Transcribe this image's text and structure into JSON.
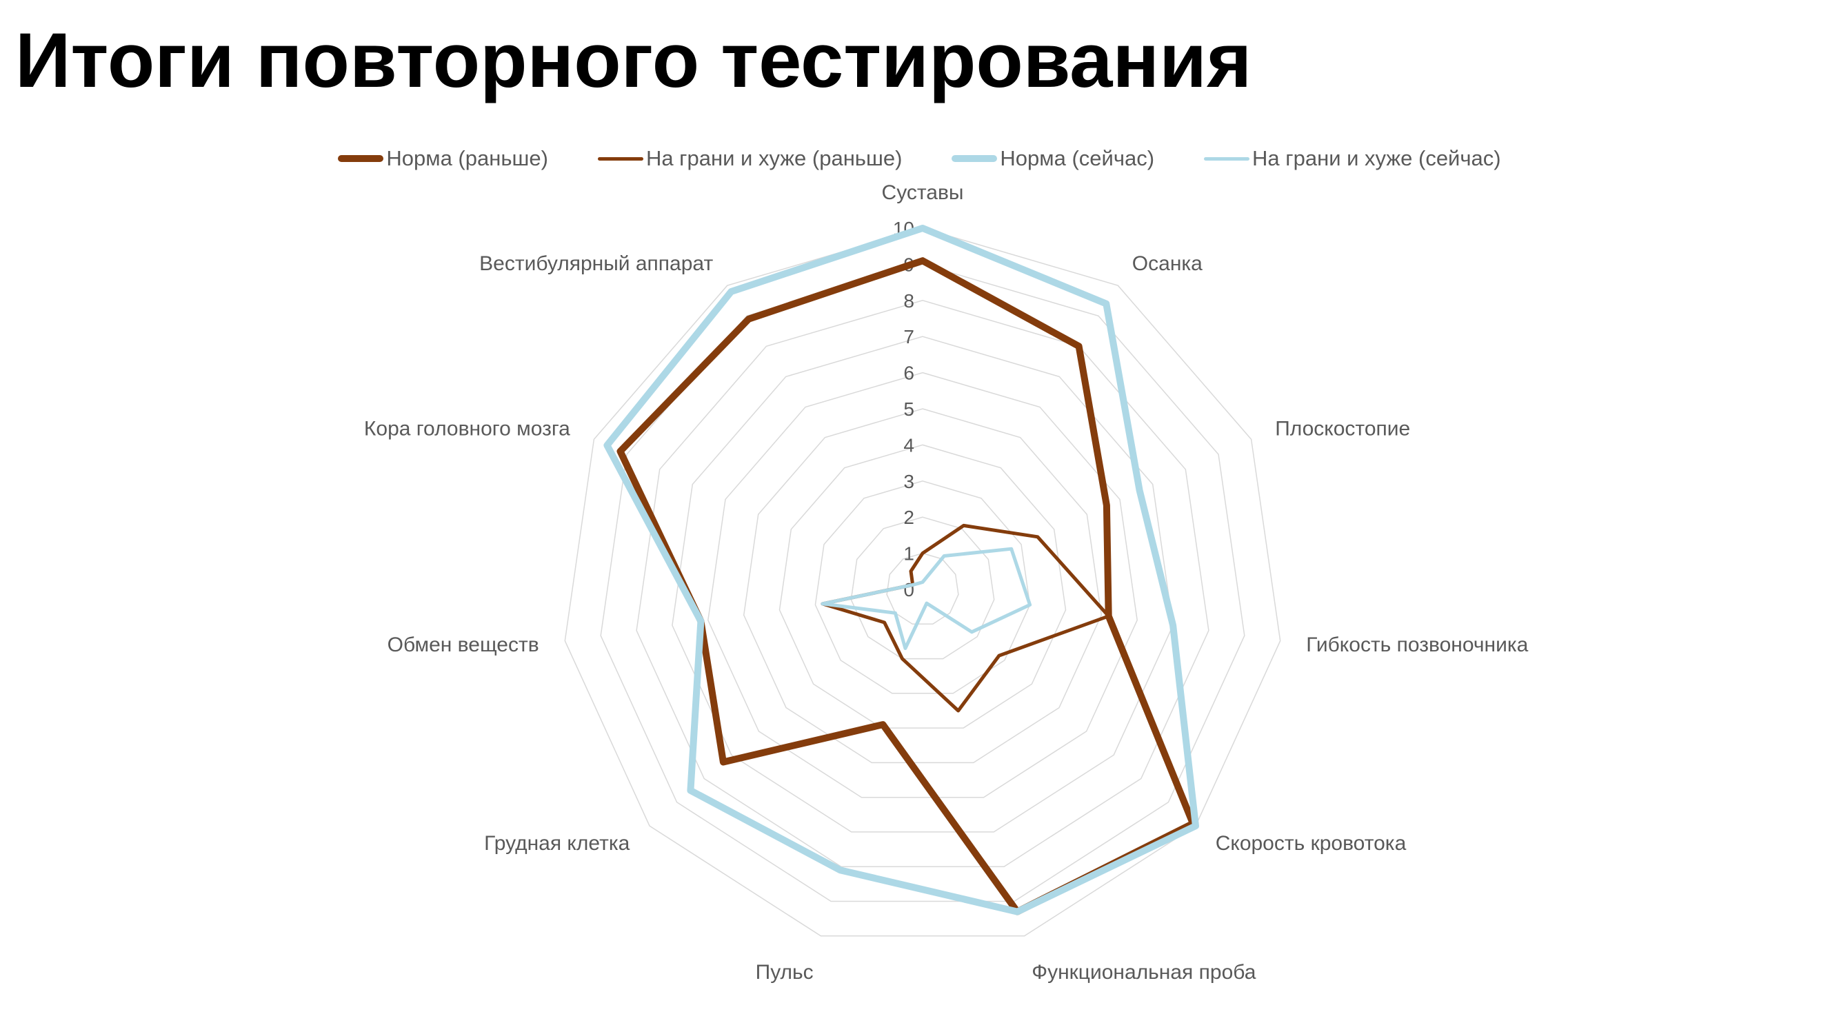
{
  "slide": {
    "title": "Итоги повторного тестирования"
  },
  "chart_data": {
    "type": "radar",
    "categories": [
      "Суставы",
      "Осанка",
      "Плоскостопие",
      "Гибкость позвоночника",
      "Скорость кровотока",
      "Функциональная проба",
      "Пульс",
      "Грудная клетка",
      "Обмен веществ",
      "Кора головного мозга",
      "Вестибулярный аппарат"
    ],
    "rlim": [
      0,
      10
    ],
    "ticks": [
      "0",
      "1",
      "2",
      "3",
      "4",
      "5",
      "6",
      "7",
      "8",
      "9",
      "10"
    ],
    "grid": true,
    "legend_position": "top",
    "series": [
      {
        "name": "Норма (раньше)",
        "values": [
          9.1,
          8.0,
          5.6,
          5.2,
          9.9,
          9.3,
          3.9,
          7.3,
          6.2,
          9.2,
          8.9
        ],
        "color": "#843C0C",
        "thick": true
      },
      {
        "name": "На грани и хуже (раньше)",
        "values": [
          1.0,
          2.1,
          3.5,
          5.2,
          2.8,
          3.5,
          2.0,
          1.4,
          2.8,
          0.3,
          0.6
        ],
        "color": "#843C0C",
        "thick": false
      },
      {
        "name": "Норма (сейчас)",
        "values": [
          10.0,
          9.4,
          6.6,
          7.0,
          10.0,
          9.3,
          8.1,
          8.5,
          6.2,
          9.6,
          9.8
        ],
        "color": "#ADD8E6",
        "thick": true
      },
      {
        "name": "На грани и хуже (сейчас)",
        "values": [
          0.2,
          1.1,
          2.7,
          3.0,
          1.8,
          0.4,
          1.7,
          1.0,
          2.8,
          0.3,
          0.2
        ],
        "color": "#ADD8E6",
        "thick": false
      }
    ]
  }
}
